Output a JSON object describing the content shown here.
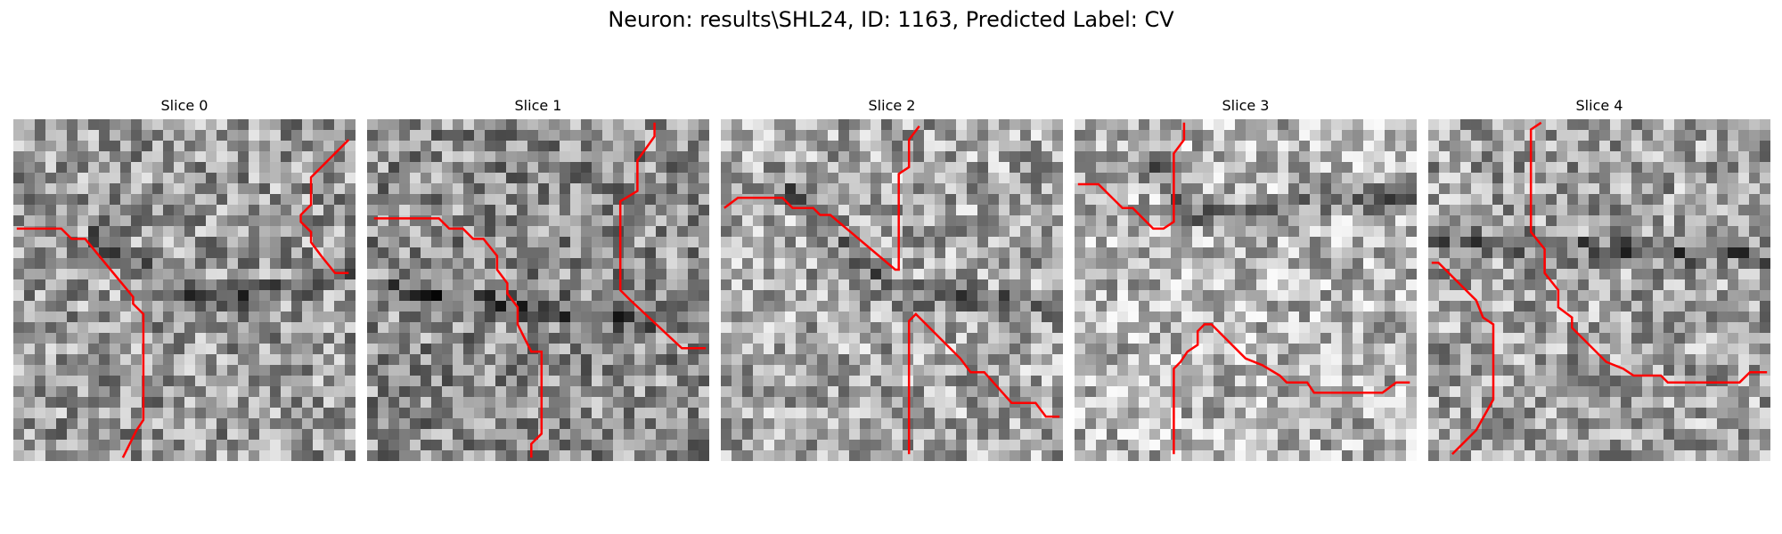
{
  "figure": {
    "title": "Neuron: results\\SHL24, ID: 1163, Predicted Label: CV"
  },
  "panels": [
    {
      "title": "Slice 0",
      "bg": "#9a9a9a",
      "trace": [
        [
          0.01,
          0.32
        ],
        [
          0.14,
          0.32
        ],
        [
          0.17,
          0.35
        ],
        [
          0.21,
          0.35
        ],
        [
          0.35,
          0.52
        ],
        [
          0.35,
          0.54
        ],
        [
          0.38,
          0.57
        ],
        [
          0.38,
          0.88
        ],
        [
          0.36,
          0.91
        ],
        [
          0.32,
          0.99
        ]
      ],
      "trace2": [
        [
          0.98,
          0.06
        ],
        [
          0.87,
          0.17
        ],
        [
          0.87,
          0.25
        ],
        [
          0.84,
          0.28
        ],
        [
          0.84,
          0.3
        ],
        [
          0.87,
          0.33
        ],
        [
          0.87,
          0.36
        ],
        [
          0.9,
          0.4
        ],
        [
          0.94,
          0.45
        ],
        [
          0.98,
          0.45
        ]
      ]
    },
    {
      "title": "Slice 1",
      "bg": "#8f8f8f",
      "trace": [
        [
          0.02,
          0.29
        ],
        [
          0.21,
          0.29
        ],
        [
          0.24,
          0.32
        ],
        [
          0.28,
          0.32
        ],
        [
          0.31,
          0.35
        ],
        [
          0.34,
          0.35
        ],
        [
          0.38,
          0.4
        ],
        [
          0.38,
          0.44
        ],
        [
          0.41,
          0.48
        ],
        [
          0.41,
          0.51
        ],
        [
          0.44,
          0.55
        ],
        [
          0.44,
          0.6
        ],
        [
          0.46,
          0.64
        ],
        [
          0.48,
          0.68
        ],
        [
          0.51,
          0.68
        ],
        [
          0.51,
          0.92
        ],
        [
          0.48,
          0.95
        ],
        [
          0.48,
          0.99
        ]
      ],
      "trace2": [
        [
          0.84,
          0.01
        ],
        [
          0.84,
          0.05
        ],
        [
          0.79,
          0.12
        ],
        [
          0.79,
          0.21
        ],
        [
          0.74,
          0.24
        ],
        [
          0.74,
          0.5
        ],
        [
          0.77,
          0.53
        ],
        [
          0.92,
          0.67
        ],
        [
          0.99,
          0.67
        ]
      ]
    },
    {
      "title": "Slice 2",
      "bg": "#a8a8a8",
      "trace": [
        [
          0.01,
          0.26
        ],
        [
          0.05,
          0.23
        ],
        [
          0.18,
          0.23
        ],
        [
          0.21,
          0.26
        ],
        [
          0.27,
          0.26
        ],
        [
          0.29,
          0.28
        ],
        [
          0.32,
          0.28
        ],
        [
          0.51,
          0.44
        ],
        [
          0.52,
          0.44
        ],
        [
          0.52,
          0.16
        ],
        [
          0.55,
          0.14
        ],
        [
          0.55,
          0.06
        ],
        [
          0.58,
          0.02
        ]
      ],
      "trace2": [
        [
          0.55,
          0.98
        ],
        [
          0.55,
          0.59
        ],
        [
          0.57,
          0.57
        ],
        [
          0.7,
          0.7
        ],
        [
          0.73,
          0.74
        ],
        [
          0.77,
          0.74
        ],
        [
          0.85,
          0.83
        ],
        [
          0.92,
          0.83
        ],
        [
          0.95,
          0.87
        ],
        [
          0.99,
          0.87
        ]
      ]
    },
    {
      "title": "Slice 3",
      "bg": "#b4b4b4",
      "trace": [
        [
          0.01,
          0.19
        ],
        [
          0.07,
          0.19
        ],
        [
          0.1,
          0.22
        ],
        [
          0.14,
          0.26
        ],
        [
          0.17,
          0.26
        ],
        [
          0.2,
          0.29
        ],
        [
          0.23,
          0.32
        ],
        [
          0.26,
          0.32
        ],
        [
          0.29,
          0.3
        ],
        [
          0.29,
          0.1
        ],
        [
          0.32,
          0.06
        ],
        [
          0.32,
          0.01
        ]
      ],
      "trace2": [
        [
          0.29,
          0.98
        ],
        [
          0.29,
          0.73
        ],
        [
          0.31,
          0.71
        ],
        [
          0.33,
          0.68
        ],
        [
          0.36,
          0.66
        ],
        [
          0.36,
          0.62
        ],
        [
          0.38,
          0.6
        ],
        [
          0.4,
          0.6
        ],
        [
          0.5,
          0.7
        ],
        [
          0.55,
          0.72
        ],
        [
          0.6,
          0.75
        ],
        [
          0.62,
          0.77
        ],
        [
          0.68,
          0.77
        ],
        [
          0.7,
          0.8
        ],
        [
          0.9,
          0.8
        ],
        [
          0.94,
          0.77
        ],
        [
          0.98,
          0.77
        ]
      ]
    },
    {
      "title": "Slice 4",
      "bg": "#a2a2a2",
      "trace": [
        [
          0.01,
          0.42
        ],
        [
          0.03,
          0.42
        ],
        [
          0.14,
          0.53
        ],
        [
          0.16,
          0.58
        ],
        [
          0.19,
          0.6
        ],
        [
          0.19,
          0.82
        ],
        [
          0.14,
          0.91
        ],
        [
          0.07,
          0.98
        ]
      ],
      "trace2": [
        [
          0.33,
          0.01
        ],
        [
          0.3,
          0.03
        ],
        [
          0.3,
          0.33
        ],
        [
          0.34,
          0.38
        ],
        [
          0.34,
          0.45
        ],
        [
          0.38,
          0.5
        ],
        [
          0.38,
          0.55
        ],
        [
          0.42,
          0.58
        ],
        [
          0.42,
          0.61
        ],
        [
          0.52,
          0.71
        ],
        [
          0.57,
          0.73
        ],
        [
          0.6,
          0.75
        ],
        [
          0.68,
          0.75
        ],
        [
          0.7,
          0.77
        ],
        [
          0.91,
          0.77
        ],
        [
          0.94,
          0.74
        ],
        [
          0.99,
          0.74
        ]
      ]
    }
  ],
  "colors": {
    "trace": "#ff0000"
  }
}
